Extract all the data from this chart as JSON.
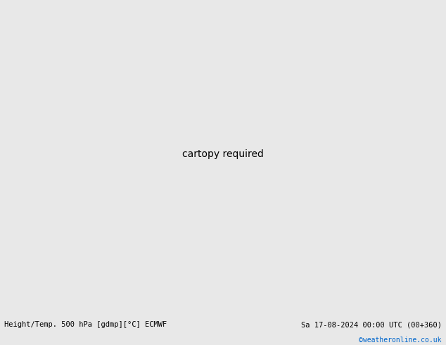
{
  "title_left": "Height/Temp. 500 hPa [gdmp][°C] ECMWF",
  "title_right": "Sa 17-08-2024 00:00 UTC (00+360)",
  "credit": "©weatheronline.co.uk",
  "fig_width": 6.34,
  "fig_height": 4.9,
  "dpi": 100,
  "background_color": "#e8e8e8",
  "land_color": "#d2d2d2",
  "sea_color": "#e8e8e8",
  "green_color": "#b4d89a",
  "contour_color": "#000000",
  "temp_contour_orange": "#e08000",
  "temp_contour_red": "#cc0000",
  "label_fontsize": 7,
  "title_fontsize": 7.5,
  "credit_fontsize": 7,
  "bottom_bar_color": "#f0f0f0",
  "contour_linewidth": 1.1,
  "temp_linewidth": 1.0,
  "border_color": "#aaaaaa",
  "coast_color": "#888888",
  "projection_central_lon": 10,
  "projection_central_lat": 50,
  "extent": [
    -35,
    55,
    24,
    72
  ]
}
